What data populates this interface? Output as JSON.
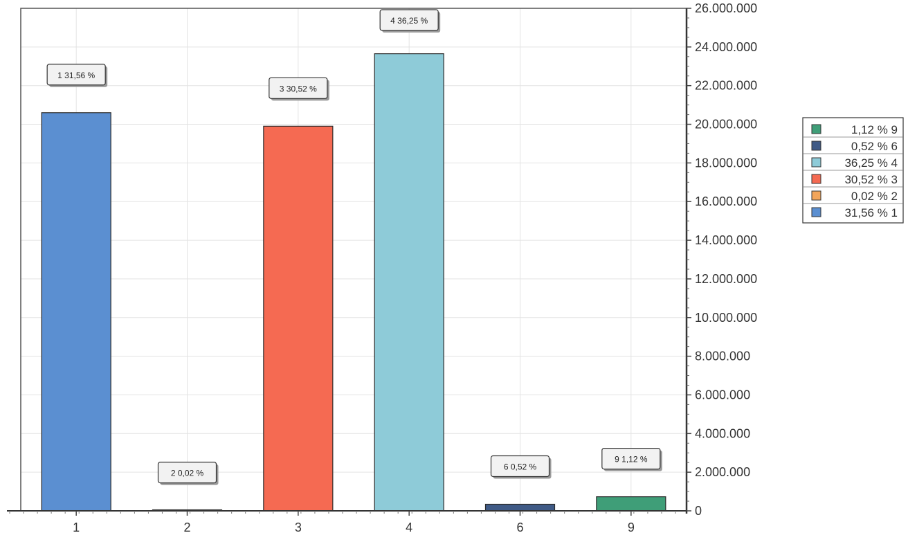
{
  "chart_data": {
    "type": "bar",
    "categories": [
      "1",
      "2",
      "3",
      "4",
      "6",
      "9"
    ],
    "values": [
      20600000,
      13000,
      19900000,
      23650000,
      340000,
      730000
    ],
    "data_labels": [
      "1 31,56 %",
      "2 0,02 %",
      "3 30,52 %",
      "4 36,25 %",
      "6 0,52 %",
      "9 1,12 %"
    ],
    "colors": [
      "#5b8fd1",
      "#f2a55a",
      "#f56a52",
      "#8ecbd8",
      "#3f5a86",
      "#3f9e78"
    ],
    "y_ticks": [
      0,
      2000000,
      4000000,
      6000000,
      8000000,
      10000000,
      12000000,
      14000000,
      16000000,
      18000000,
      20000000,
      22000000,
      24000000,
      26000000
    ],
    "y_tick_labels": [
      "0",
      "2.000.000",
      "4.000.000",
      "6.000.000",
      "8.000.000",
      "10.000.000",
      "12.000.000",
      "14.000.000",
      "16.000.000",
      "18.000.000",
      "20.000.000",
      "22.000.000",
      "24.000.000",
      "26.000.000"
    ],
    "ylim": [
      0,
      26000000
    ],
    "y_axis_side": "right",
    "grid": true,
    "legend_position": "right",
    "legend": [
      {
        "label": "1,12 % 9",
        "color": "#3f9e78"
      },
      {
        "label": "0,52 % 6",
        "color": "#3f5a86"
      },
      {
        "label": "36,25 % 4",
        "color": "#8ecbd8"
      },
      {
        "label": "30,52 % 3",
        "color": "#f56a52"
      },
      {
        "label": "0,02 % 2",
        "color": "#f2a55a"
      },
      {
        "label": "31,56 % 1",
        "color": "#5b8fd1"
      }
    ],
    "title": "",
    "xlabel": "",
    "ylabel": ""
  }
}
